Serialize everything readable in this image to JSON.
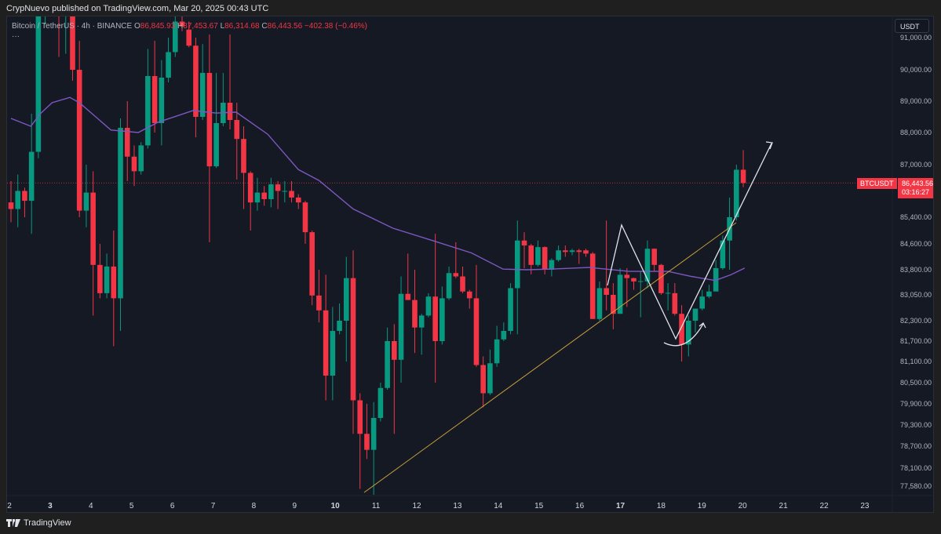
{
  "publish_line": "CrypNuevo published on TradingView.com, Mar 20, 2025 00:43 UTC",
  "legend": {
    "symbol": "Bitcoin / TetherUS · 4h · BINANCE",
    "o_label": "O",
    "o": "86,845.93",
    "h_label": "H",
    "h": "87,453.67",
    "l_label": "L",
    "l": "86,314.68",
    "c_label": "C",
    "c": "86,443.56",
    "change": "−402.38 (−0.46%)",
    "more": "···"
  },
  "currency_button": "USDT",
  "last_price": {
    "symbol": "BTCUSDT",
    "price": "86,443.56",
    "countdown": "03:16:27",
    "value": 86443.56
  },
  "branding": "TradingView",
  "colors": {
    "up": "#089981",
    "down": "#f23645",
    "ma": "#7e57c2",
    "trendline": "#c8a03c",
    "drawing": "#e0e3eb",
    "background": "#151924"
  },
  "chart_data": {
    "type": "candlestick",
    "interval": "4h",
    "price_ticks": [
      91000,
      90000,
      89000,
      88000,
      87000,
      85400,
      84600,
      83800,
      83050,
      82300,
      81700,
      81100,
      80500,
      79900,
      79300,
      78700,
      78100,
      77580
    ],
    "price_tick_labels": [
      "91,000.00",
      "90,000.00",
      "89,000.00",
      "88,000.00",
      "87,000.00",
      "85,400.00",
      "84,600.00",
      "83,800.00",
      "83,050.00",
      "82,300.00",
      "81,700.00",
      "81,100.00",
      "80,500.00",
      "79,900.00",
      "79,300.00",
      "78,700.00",
      "78,100.00",
      "77,580.00"
    ],
    "time_labels": [
      "2",
      "3",
      "4",
      "5",
      "6",
      "7",
      "8",
      "9",
      "10",
      "11",
      "12",
      "13",
      "14",
      "15",
      "16",
      "17",
      "18",
      "19",
      "20",
      "21",
      "22",
      "23"
    ],
    "bold_time_labels": [
      "3",
      "10",
      "17"
    ],
    "candles_ohlc": [
      [
        85850,
        86500,
        85250,
        85650
      ],
      [
        85650,
        86700,
        85100,
        86200
      ],
      [
        86200,
        86300,
        85400,
        85900
      ],
      [
        85900,
        88600,
        84900,
        87400
      ],
      [
        87400,
        92000,
        87200,
        91700
      ],
      [
        91700,
        93200,
        91400,
        92800
      ],
      [
        92800,
        93500,
        92200,
        92400
      ],
      [
        92400,
        93000,
        90400,
        91800
      ],
      [
        91800,
        92500,
        90500,
        92000
      ],
      [
        92000,
        92300,
        89650,
        90000
      ],
      [
        90000,
        90900,
        85400,
        85600
      ],
      [
        85600,
        87000,
        85100,
        86150
      ],
      [
        86150,
        86800,
        82450,
        83950
      ],
      [
        83950,
        84600,
        82950,
        83100
      ],
      [
        83100,
        84300,
        82950,
        83900
      ],
      [
        83900,
        85000,
        81550,
        82950
      ],
      [
        82950,
        88450,
        82000,
        88150
      ],
      [
        88150,
        89000,
        86500,
        87250
      ],
      [
        87250,
        87600,
        86350,
        86800
      ],
      [
        86800,
        87700,
        86700,
        87600
      ],
      [
        87600,
        90650,
        87500,
        89800
      ],
      [
        89800,
        90900,
        88000,
        88300
      ],
      [
        88300,
        90300,
        87600,
        89750
      ],
      [
        89750,
        91000,
        89600,
        90550
      ],
      [
        90550,
        91800,
        90400,
        91500
      ],
      [
        91500,
        91800,
        91200,
        91350
      ],
      [
        91250,
        91500,
        90700,
        90750
      ],
      [
        90750,
        91000,
        87850,
        88500
      ],
      [
        88500,
        90800,
        88400,
        89900
      ],
      [
        89900,
        91100,
        84650,
        86950
      ],
      [
        86950,
        89900,
        86900,
        88300
      ],
      [
        88300,
        89900,
        88200,
        88950
      ],
      [
        88950,
        91100,
        88100,
        88400
      ],
      [
        88400,
        88950,
        86550,
        87800
      ],
      [
        87800,
        88200,
        85650,
        86750
      ],
      [
        86750,
        86800,
        85000,
        85850
      ],
      [
        85850,
        86600,
        85600,
        86150
      ],
      [
        86150,
        86350,
        85750,
        85950
      ],
      [
        85950,
        86600,
        85700,
        86400
      ],
      [
        86400,
        86500,
        85650,
        86200
      ],
      [
        86200,
        86500,
        85850,
        86200
      ],
      [
        86200,
        86500,
        85850,
        86000
      ],
      [
        86000,
        86100,
        85650,
        85850
      ],
      [
        85850,
        85900,
        84600,
        84950
      ],
      [
        84950,
        85000,
        82750,
        83030
      ],
      [
        83030,
        83800,
        82250,
        82600
      ],
      [
        82600,
        83650,
        80000,
        80700
      ],
      [
        80700,
        82700,
        80000,
        82000
      ],
      [
        82000,
        82800,
        81900,
        82300
      ],
      [
        82300,
        84200,
        81100,
        83550
      ],
      [
        83550,
        84400,
        79050,
        80000
      ],
      [
        80000,
        80200,
        77500,
        79050
      ],
      [
        79050,
        79900,
        78350,
        78600
      ],
      [
        78600,
        79950,
        77330,
        79500
      ],
      [
        79500,
        80500,
        79400,
        80350
      ],
      [
        80350,
        82100,
        80300,
        81700
      ],
      [
        81700,
        82200,
        79050,
        81150
      ],
      [
        81150,
        83600,
        80500,
        83080
      ],
      [
        83080,
        84300,
        82900,
        82900
      ],
      [
        82900,
        83800,
        81350,
        82100
      ],
      [
        82100,
        82500,
        81300,
        82450
      ],
      [
        82450,
        83100,
        82400,
        83000
      ],
      [
        83000,
        84900,
        80500,
        81700
      ],
      [
        81700,
        83300,
        81600,
        82950
      ],
      [
        82950,
        83900,
        82900,
        83700
      ],
      [
        83700,
        84650,
        83550,
        83600
      ],
      [
        83600,
        83900,
        83100,
        83150
      ],
      [
        83150,
        83200,
        82650,
        82950
      ],
      [
        82950,
        83950,
        80950,
        81000
      ],
      [
        81000,
        81250,
        79800,
        80200
      ],
      [
        80200,
        81450,
        80150,
        81050
      ],
      [
        81050,
        82150,
        80950,
        81750
      ],
      [
        81750,
        82250,
        81700,
        82000
      ],
      [
        82000,
        83400,
        81900,
        83250
      ],
      [
        83250,
        85300,
        81900,
        84700
      ],
      [
        84700,
        84950,
        83850,
        84550
      ],
      [
        84550,
        84600,
        83660,
        83950
      ],
      [
        83950,
        84700,
        83900,
        84500
      ],
      [
        84500,
        84520,
        83660,
        83800
      ],
      [
        83800,
        84150,
        83600,
        84100
      ],
      [
        84100,
        84550,
        84050,
        84400
      ],
      [
        84400,
        84550,
        84200,
        84350
      ],
      [
        84350,
        84450,
        84250,
        84400
      ],
      [
        84400,
        84450,
        83980,
        84350
      ],
      [
        84400,
        84450,
        84200,
        84300
      ],
      [
        84300,
        84350,
        82350,
        82350
      ],
      [
        82350,
        83450,
        82300,
        83250
      ],
      [
        83250,
        85300,
        82600,
        83050
      ],
      [
        83050,
        83400,
        82050,
        82500
      ],
      [
        82500,
        83850,
        82500,
        83650
      ],
      [
        83650,
        83850,
        82700,
        83550
      ],
      [
        83550,
        83560,
        83200,
        83450
      ],
      [
        83450,
        83750,
        82400,
        83460
      ],
      [
        83450,
        84700,
        83250,
        84450
      ],
      [
        84450,
        84460,
        83750,
        83950
      ],
      [
        83950,
        83980,
        83050,
        83100
      ],
      [
        83100,
        83400,
        82600,
        83110
      ],
      [
        83100,
        83400,
        82450,
        82500
      ],
      [
        82500,
        82750,
        81100,
        81600
      ],
      [
        81600,
        82450,
        81250,
        82300
      ],
      [
        82300,
        82320,
        81950,
        82650
      ],
      [
        82650,
        83200,
        82600,
        83000
      ],
      [
        83000,
        83350,
        82950,
        83150
      ],
      [
        83150,
        84100,
        83500,
        83850
      ],
      [
        83850,
        84850,
        83800,
        84700
      ],
      [
        84700,
        86000,
        83800,
        85400
      ],
      [
        85400,
        87000,
        85300,
        86845.93
      ],
      [
        86845.93,
        87453.67,
        86314.68,
        86443.56
      ]
    ],
    "moving_average": [
      [
        0,
        88450
      ],
      [
        2.9,
        88200
      ],
      [
        4.2,
        88580
      ],
      [
        6,
        88950
      ],
      [
        8.6,
        89120
      ],
      [
        10,
        88950
      ],
      [
        14.6,
        88080
      ],
      [
        18.6,
        88000
      ],
      [
        21.4,
        88320
      ],
      [
        26.6,
        88700
      ],
      [
        30,
        88620
      ],
      [
        32.9,
        88650
      ],
      [
        37.5,
        87950
      ],
      [
        42,
        86850
      ],
      [
        45,
        86520
      ],
      [
        50,
        85650
      ],
      [
        55.8,
        85070
      ],
      [
        61.6,
        84700
      ],
      [
        67.3,
        84320
      ],
      [
        71.9,
        83820
      ],
      [
        75.3,
        83800
      ],
      [
        78.8,
        83820
      ],
      [
        84.5,
        83870
      ],
      [
        90.3,
        83750
      ],
      [
        96,
        83750
      ],
      [
        99.4,
        83600
      ],
      [
        102.9,
        83480
      ],
      [
        105.2,
        83650
      ],
      [
        107.2,
        83850
      ]
    ]
  }
}
